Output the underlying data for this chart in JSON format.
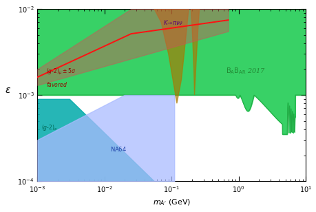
{
  "xlim": [
    0.001,
    10
  ],
  "ylim": [
    0.0001,
    0.01
  ],
  "babar_color": "#22cc55",
  "babar_edge_color": "#22aa44",
  "gm2_band_color": "#cc5555",
  "gm2_band_alpha": 0.45,
  "gm2_line_color": "#ff1111",
  "kaon_color": "#aa7700",
  "kaon_alpha": 0.65,
  "gm2e_color": "#00aaaa",
  "gm2e_alpha": 0.85,
  "na64_color": "#aabbff",
  "na64_alpha": 0.75,
  "babar_label_color": "#228833",
  "kaon_label_color": "#550077",
  "gm2_label_color": "#990000",
  "gm2e_label_color": "#006655",
  "na64_label_color": "#2244aa"
}
